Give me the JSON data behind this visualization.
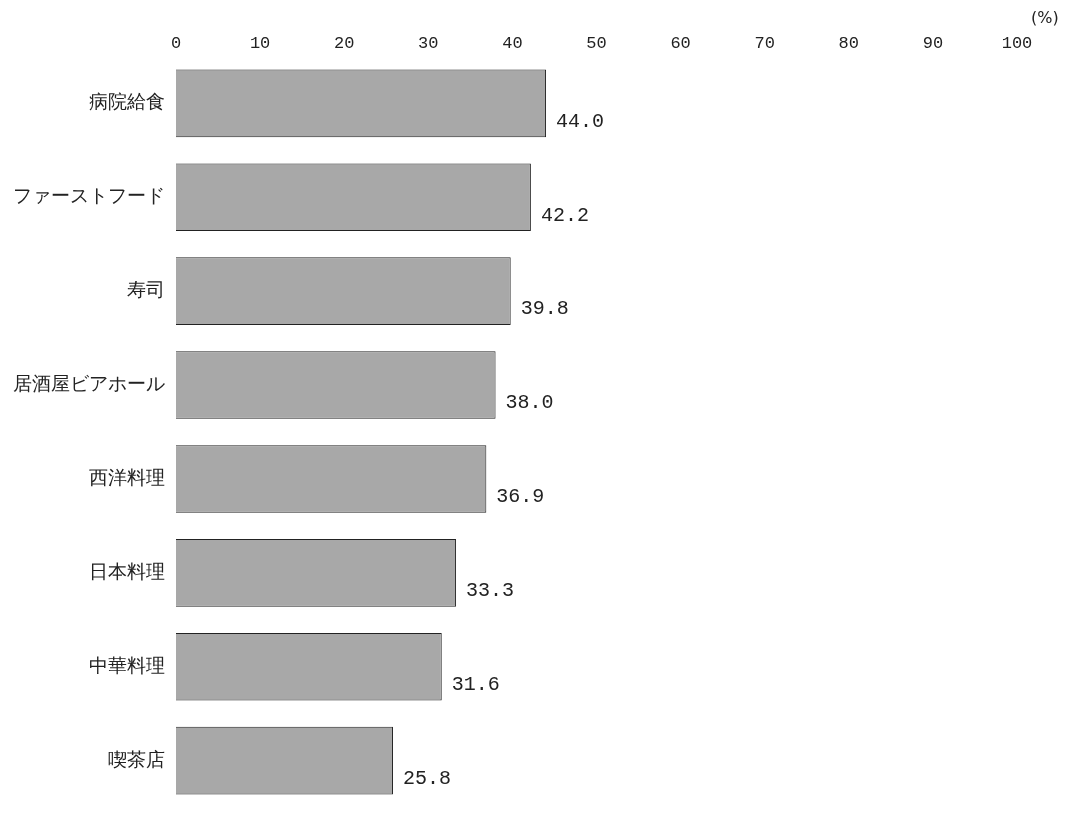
{
  "chart_data": {
    "type": "bar",
    "orientation": "horizontal",
    "xlabel": "(%)",
    "categories": [
      "病院給食",
      "ファーストフード",
      "寿司",
      "居酒屋ビアホール",
      "西洋料理",
      "日本料理",
      "中華料理",
      "喫茶店"
    ],
    "values": [
      44.0,
      42.2,
      39.8,
      38.0,
      36.9,
      33.3,
      31.6,
      25.8
    ],
    "value_labels": [
      "44.0",
      "42.2",
      "39.8",
      "38.0",
      "36.9",
      "33.3",
      "31.6",
      "25.8"
    ],
    "color": "#a8a8a8",
    "xlim": [
      0,
      100
    ],
    "xticks": [
      0,
      10,
      20,
      30,
      40,
      50,
      60,
      70,
      80,
      90,
      100
    ],
    "grid": false,
    "legend": false
  }
}
